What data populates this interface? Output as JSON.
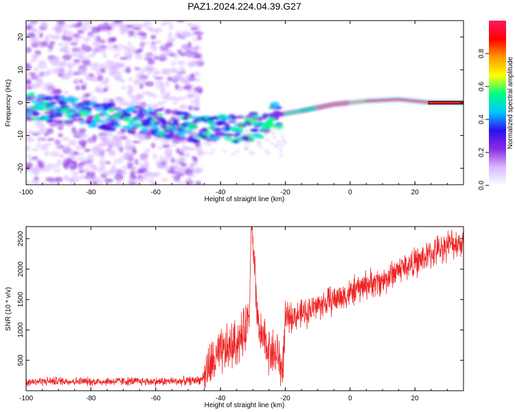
{
  "title": "PAZ1.2024.224.04.39.G27",
  "chart_data": [
    {
      "type": "heatmap",
      "xlabel": "Height of straight line (km)",
      "ylabel": "Frequency (Hz)",
      "xlim": [
        -100,
        35
      ],
      "ylim": [
        -25,
        25
      ],
      "xticks": [
        -100,
        -80,
        -60,
        -40,
        -20,
        0,
        20
      ],
      "yticks": [
        -20,
        -10,
        0,
        10,
        20
      ],
      "colorbar": {
        "label": "Normalized spectral amplitude",
        "range": [
          0,
          1
        ],
        "ticks": [
          0.0,
          0.2,
          0.4,
          0.6,
          0.8
        ],
        "colormap": [
          "#ffffff",
          "#d8b8ff",
          "#8a2be2",
          "#2a10f0",
          "#00c8ff",
          "#00ff80",
          "#ffff00",
          "#ff9900",
          "#ff0000",
          "#ff1a60"
        ]
      },
      "ridge": {
        "description_points": [
          {
            "x": -100,
            "y": -1
          },
          {
            "x": -90,
            "y": -2
          },
          {
            "x": -75,
            "y": -4
          },
          {
            "x": -60,
            "y": -6
          },
          {
            "x": -45,
            "y": -8
          },
          {
            "x": -35,
            "y": -8
          },
          {
            "x": -28,
            "y": -7
          },
          {
            "x": -24,
            "y": -4
          },
          {
            "x": -15,
            "y": -2.5
          },
          {
            "x": -5,
            "y": -0.5
          },
          {
            "x": 5,
            "y": 0.5
          },
          {
            "x": 15,
            "y": 1
          },
          {
            "x": 25,
            "y": 0
          },
          {
            "x": 35,
            "y": 0
          }
        ]
      }
    },
    {
      "type": "line",
      "xlabel": "Height of straight line (km)",
      "ylabel": "SNR (10 * v/v)",
      "xlim": [
        -100,
        35
      ],
      "ylim": [
        0,
        2700
      ],
      "xticks": [
        -100,
        -80,
        -60,
        -40,
        -20,
        0,
        20
      ],
      "yticks": [
        500,
        1000,
        1500,
        2000,
        2500
      ],
      "series": [
        {
          "color": "#ee2222",
          "x": [
            -100,
            -90,
            -80,
            -70,
            -60,
            -50,
            -46,
            -44,
            -40,
            -36,
            -33,
            -31,
            -30.5,
            -28,
            -25,
            -22,
            -21,
            -20,
            -19.5,
            -15,
            -10,
            -5,
            0,
            5,
            10,
            15,
            20,
            25,
            30,
            35
          ],
          "y": [
            150,
            160,
            150,
            155,
            150,
            160,
            180,
            350,
            600,
            750,
            900,
            1350,
            2650,
            900,
            700,
            550,
            300,
            1050,
            1200,
            1250,
            1400,
            1500,
            1600,
            1750,
            1800,
            2000,
            2100,
            2250,
            2400,
            2450
          ]
        }
      ]
    }
  ]
}
